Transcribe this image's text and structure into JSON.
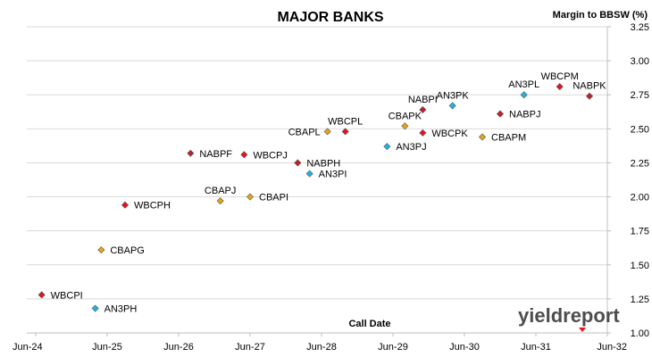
{
  "chart_data": {
    "type": "scatter",
    "title": "MAJOR BANKS",
    "ylabel": "Margin to BBSW (%)",
    "xlabel": "Call Date",
    "ylim": [
      1.0,
      3.25
    ],
    "yticks": [
      "1.00",
      "1.25",
      "1.50",
      "1.75",
      "2.00",
      "2.25",
      "2.50",
      "2.75",
      "3.00",
      "3.25"
    ],
    "xlim": [
      "Jun-24",
      "Jun-32"
    ],
    "xticks": [
      "Jun-24",
      "Jun-25",
      "Jun-26",
      "Jun-27",
      "Jun-28",
      "Jun-29",
      "Jun-30",
      "Jun-31",
      "Jun-32"
    ],
    "grid": true,
    "colors": {
      "red": "#e8141b",
      "darkred": "#c0202a",
      "gold": "#e8a317",
      "cyan": "#1fb3e6",
      "grid": "#d9d9d9"
    },
    "points": [
      {
        "label": "WBCPI",
        "x": "Jul-24",
        "y": 1.28,
        "color": "#e8141b",
        "label_pos": "right"
      },
      {
        "label": "AN3PH",
        "x": "Apr-25",
        "y": 1.18,
        "color": "#1fb3e6",
        "label_pos": "right"
      },
      {
        "label": "CBAPG",
        "x": "May-25",
        "y": 1.61,
        "color": "#e8a317",
        "label_pos": "right"
      },
      {
        "label": "WBCPH",
        "x": "Sep-25",
        "y": 1.94,
        "color": "#e8141b",
        "label_pos": "right"
      },
      {
        "label": "NABPF",
        "x": "Aug-26",
        "y": 2.32,
        "color": "#c0202a",
        "label_pos": "right"
      },
      {
        "label": "CBAPJ",
        "x": "Jan-27",
        "y": 1.97,
        "color": "#e8a317",
        "label_pos": "above"
      },
      {
        "label": "WBCPJ",
        "x": "May-27",
        "y": 2.31,
        "color": "#e8141b",
        "label_pos": "right"
      },
      {
        "label": "CBAPI",
        "x": "Jun-27",
        "y": 2.0,
        "color": "#e8a317",
        "label_pos": "right"
      },
      {
        "label": "NABPH",
        "x": "Feb-28",
        "y": 2.25,
        "color": "#c0202a",
        "label_pos": "right"
      },
      {
        "label": "AN3PI",
        "x": "Apr-28",
        "y": 2.17,
        "color": "#1fb3e6",
        "label_pos": "right"
      },
      {
        "label": "CBAPL",
        "x": "Jul-28",
        "y": 2.48,
        "color": "#e8a317",
        "label_pos": "left"
      },
      {
        "label": "WBCPL",
        "x": "Oct-28",
        "y": 2.48,
        "color": "#e8141b",
        "label_pos": "above"
      },
      {
        "label": "AN3PJ",
        "x": "May-29",
        "y": 2.37,
        "color": "#1fb3e6",
        "label_pos": "right"
      },
      {
        "label": "CBAPK",
        "x": "Aug-29",
        "y": 2.52,
        "color": "#e8a317",
        "label_pos": "above"
      },
      {
        "label": "NABPI",
        "x": "Nov-29",
        "y": 2.64,
        "color": "#c0202a",
        "label_pos": "above"
      },
      {
        "label": "WBCPK",
        "x": "Nov-29",
        "y": 2.47,
        "color": "#e8141b",
        "label_pos": "right"
      },
      {
        "label": "AN3PK",
        "x": "Apr-30",
        "y": 2.67,
        "color": "#1fb3e6",
        "label_pos": "above"
      },
      {
        "label": "CBAPM",
        "x": "Sep-30",
        "y": 2.44,
        "color": "#e8a317",
        "label_pos": "right"
      },
      {
        "label": "NABPJ",
        "x": "Dec-30",
        "y": 2.61,
        "color": "#c0202a",
        "label_pos": "right"
      },
      {
        "label": "AN3PL",
        "x": "Apr-31",
        "y": 2.75,
        "color": "#1fb3e6",
        "label_pos": "above"
      },
      {
        "label": "WBCPM",
        "x": "Oct-31",
        "y": 2.81,
        "color": "#e8141b",
        "label_pos": "above"
      },
      {
        "label": "NABPK",
        "x": "Mar-32",
        "y": 2.74,
        "color": "#c0202a",
        "label_pos": "above"
      }
    ]
  },
  "watermark": {
    "text": "yieldreport"
  }
}
